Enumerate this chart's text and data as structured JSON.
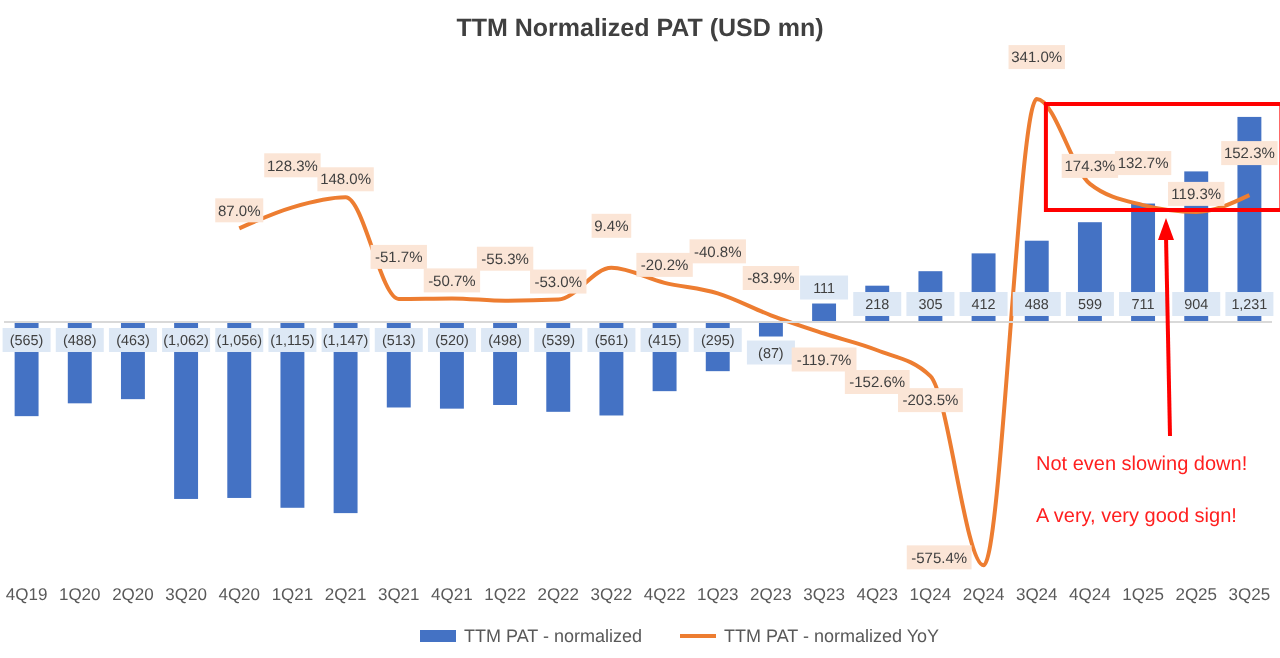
{
  "chart_data": {
    "type": "bar",
    "title": "TTM Normalized PAT (USD mn)",
    "categories": [
      "4Q19",
      "1Q20",
      "2Q20",
      "3Q20",
      "4Q20",
      "1Q21",
      "2Q21",
      "3Q21",
      "4Q21",
      "1Q22",
      "2Q22",
      "3Q22",
      "4Q22",
      "1Q23",
      "2Q23",
      "3Q23",
      "4Q23",
      "1Q24",
      "2Q24",
      "3Q24",
      "4Q24",
      "1Q25",
      "2Q25",
      "3Q25"
    ],
    "series": [
      {
        "name": "TTM PAT - normalized",
        "color": "#4472c4",
        "values": [
          -565,
          -488,
          -463,
          -1062,
          -1056,
          -1115,
          -1147,
          -513,
          -520,
          -498,
          -539,
          -561,
          -415,
          -295,
          -87,
          111,
          218,
          305,
          412,
          488,
          599,
          711,
          904,
          1231
        ],
        "value_labels": [
          "(565)",
          "(488)",
          "(463)",
          "(1,062)",
          "(1,056)",
          "(1,115)",
          "(1,147)",
          "(513)",
          "(520)",
          "(498)",
          "(539)",
          "(561)",
          "(415)",
          "(295)",
          "(87)",
          "111",
          "218",
          "305",
          "412",
          "488",
          "599",
          "711",
          "904",
          "1,231"
        ]
      },
      {
        "name": "TTM PAT - normalized YoY",
        "type": "line",
        "axis": "y2",
        "color": "#ed7d31",
        "values": [
          null,
          null,
          null,
          null,
          87.0,
          128.3,
          148.0,
          -51.7,
          -50.7,
          -55.3,
          -53.0,
          9.4,
          -20.2,
          -40.8,
          -83.9,
          -119.7,
          -152.6,
          -203.5,
          -575.4,
          341.0,
          174.3,
          132.7,
          119.3,
          152.3
        ],
        "value_labels": [
          null,
          null,
          null,
          null,
          "87.0%",
          "128.3%",
          "148.0%",
          "-51.7%",
          "-50.7%",
          "-55.3%",
          "-53.0%",
          "9.4%",
          "-20.2%",
          "-40.8%",
          "-83.9%",
          "-119.7%",
          "-152.6%",
          "-203.5%",
          "-575.4%",
          "341.0%",
          "174.3%",
          "132.7%",
          "119.3%",
          "152.3%"
        ]
      }
    ],
    "tick_labels": "x",
    "grid": false,
    "legend": "bottom",
    "marker": "none",
    "line_style": "solid",
    "annotations": [
      "Not even slowing down!",
      "A very, very good sign!"
    ]
  }
}
